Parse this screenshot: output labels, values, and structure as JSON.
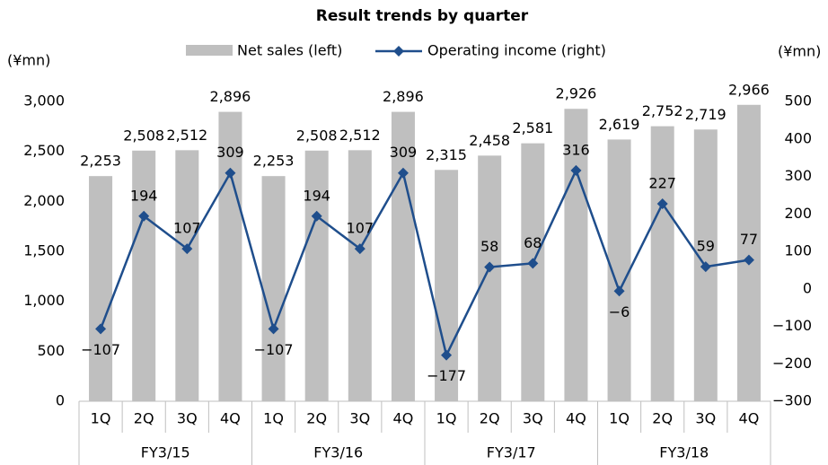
{
  "chart_data": {
    "type": "bar-line",
    "title": "Result trends by quarter",
    "y_label": "(¥mn)",
    "y2_label": "(¥mn)",
    "categories": [
      "1Q",
      "2Q",
      "3Q",
      "4Q",
      "1Q",
      "2Q",
      "3Q",
      "4Q",
      "1Q",
      "2Q",
      "3Q",
      "4Q",
      "1Q",
      "2Q",
      "3Q",
      "4Q"
    ],
    "groups": [
      "FY3/15",
      "FY3/16",
      "FY3/17",
      "FY3/18"
    ],
    "series": [
      {
        "name": "Net sales (left)",
        "type": "bar",
        "color": "#bfbfbf",
        "values": [
          2253,
          2508,
          2512,
          2896,
          2253,
          2508,
          2512,
          2896,
          2315,
          2458,
          2581,
          2926,
          2619,
          2752,
          2719,
          2966
        ],
        "value_labels": [
          "2,253",
          "2,508",
          "2,512",
          "2,896",
          "2,253",
          "2,508",
          "2,512",
          "2,896",
          "2,315",
          "2,458",
          "2,581",
          "2,926",
          "2,619",
          "2,752",
          "2,719",
          "2,966"
        ]
      },
      {
        "name": "Operating income (right)",
        "type": "line",
        "axis": "y2",
        "color": "#1f4e8c",
        "values": [
          -107,
          194,
          107,
          309,
          -107,
          194,
          107,
          309,
          -177,
          58,
          68,
          316,
          -6,
          227,
          59,
          77
        ],
        "value_labels": [
          "−107",
          "194",
          "107",
          "309",
          "−107",
          "194",
          "107",
          "309",
          "−177",
          "58",
          "68",
          "316",
          "−6",
          "227",
          "59",
          "77"
        ]
      }
    ],
    "ylim": [
      0,
      3000
    ],
    "yticks": [
      0,
      500,
      {
        "value": 1000,
        "label": "1,000"
      },
      {
        "value": 1500,
        "label": "1,500"
      },
      {
        "value": 2000,
        "label": "2,000"
      },
      {
        "value": 2500,
        "label": "2,500"
      },
      {
        "value": 3000,
        "label": "3,000"
      }
    ],
    "y2lim": [
      -300,
      500
    ],
    "y2ticks": [
      {
        "value": -300,
        "label": "−300"
      },
      {
        "value": -200,
        "label": "−200"
      },
      {
        "value": -100,
        "label": "−100"
      },
      0,
      100,
      200,
      300,
      400,
      500
    ],
    "grid": false
  }
}
